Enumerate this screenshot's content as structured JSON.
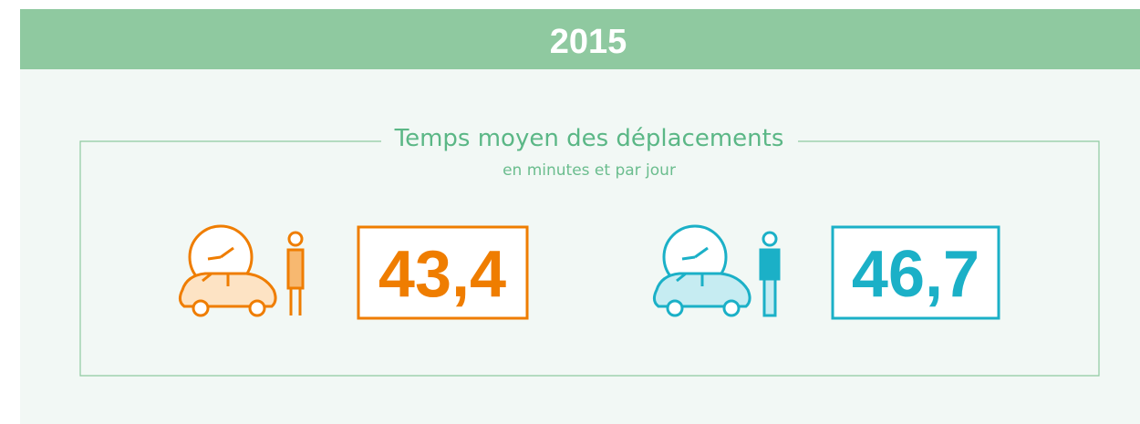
{
  "header": {
    "title": "2015"
  },
  "section": {
    "title": "Temps moyen des déplacements",
    "subtitle": "en minutes et par jour"
  },
  "items": [
    {
      "value": "43,4"
    },
    {
      "value": "46,7"
    }
  ]
}
